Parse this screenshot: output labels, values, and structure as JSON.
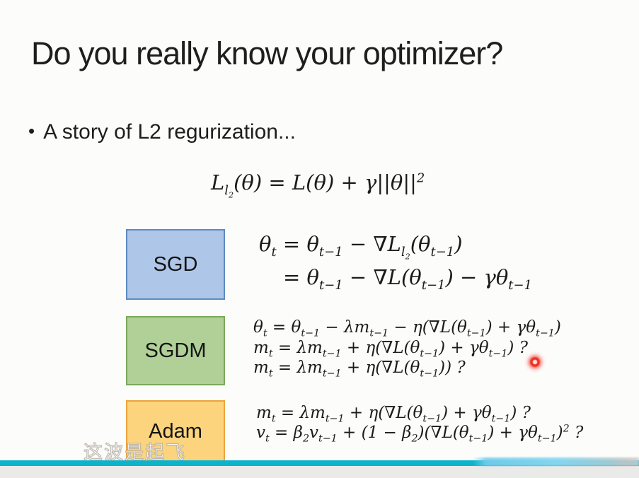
{
  "slide": {
    "title": "Do you really know your optimizer?",
    "bullet_marker": "•",
    "bullet_text": "A story of L2 regurization...",
    "l2_formula": "L_{l_{2}}(θ) = L(θ) + γ||θ||^{2}",
    "optimizers": [
      {
        "label": "SGD",
        "box_fill": "#aec6e8",
        "box_border": "#5e8bc0",
        "equations": [
          "θ_{t} = θ_{t−1} − ∇L_{l_{2}}(θ_{t−1})",
          "= θ_{t−1} − ∇L(θ_{t−1}) − γθ_{t−1}"
        ]
      },
      {
        "label": "SGDM",
        "box_fill": "#b0d098",
        "box_border": "#7aa95e",
        "equations": [
          "θ_{t} = θ_{t−1} − λm_{t−1} − η(∇L(θ_{t−1}) + γθ_{t−1})",
          "m_{t} = λm_{t−1} + η(∇L(θ_{t−1}) + γθ_{t−1}) ?",
          "m_{t} = λm_{t−1} + η(∇L(θ_{t−1})) ?"
        ]
      },
      {
        "label": "Adam",
        "box_fill": "#fcd47e",
        "box_border": "#eda33f",
        "equations": [
          "m_{t} = λm_{t−1} + η(∇L(θ_{t−1}) + γθ_{t−1}) ?",
          "v_{t} = β_{2}v_{t−1} + (1 − β_{2})(∇L(θ_{t−1}) + γθ_{t−1})^{2} ?"
        ]
      }
    ]
  },
  "overlay": {
    "watermark_text": "这波是起飞",
    "laser_pointer_color": "#ea2a1c"
  },
  "footer": {
    "divider_color": "#0cb3cd",
    "bar_color": "#eaeae8"
  }
}
